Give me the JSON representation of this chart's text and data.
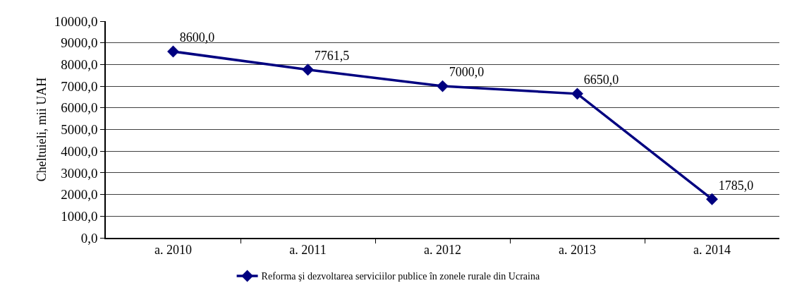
{
  "chart_data": {
    "type": "line",
    "ylabel": "Cheltuieli, mii UAH",
    "categories": [
      "a. 2010",
      "a. 2011",
      "a. 2012",
      "a. 2013",
      "a. 2014"
    ],
    "series": [
      {
        "name": "Reforma şi dezvoltarea serviciilor publice în zonele rurale din Ucraina",
        "color": "#000080",
        "values": [
          8600.0,
          7761.5,
          7000.0,
          6650.0,
          1785.0
        ],
        "value_labels": [
          "8600,0",
          "7761,5",
          "7000,0",
          "6650,0",
          "1785,0"
        ]
      }
    ],
    "ylim": [
      0,
      10000
    ],
    "yticks": [
      {
        "value": 0,
        "label": "0,0"
      },
      {
        "value": 1000,
        "label": "1000,0"
      },
      {
        "value": 2000,
        "label": "2000,0"
      },
      {
        "value": 3000,
        "label": "3000,0"
      },
      {
        "value": 4000,
        "label": "4000,0"
      },
      {
        "value": 5000,
        "label": "5000,0"
      },
      {
        "value": 6000,
        "label": "6000,0"
      },
      {
        "value": 7000,
        "label": "7000,0"
      },
      {
        "value": 8000,
        "label": "8000,0"
      },
      {
        "value": 9000,
        "label": "9000,0"
      },
      {
        "value": 10000,
        "label": "10000,0"
      }
    ],
    "grid": "y",
    "legend": "bottom",
    "marker": "diamond",
    "line_style": "solid"
  }
}
